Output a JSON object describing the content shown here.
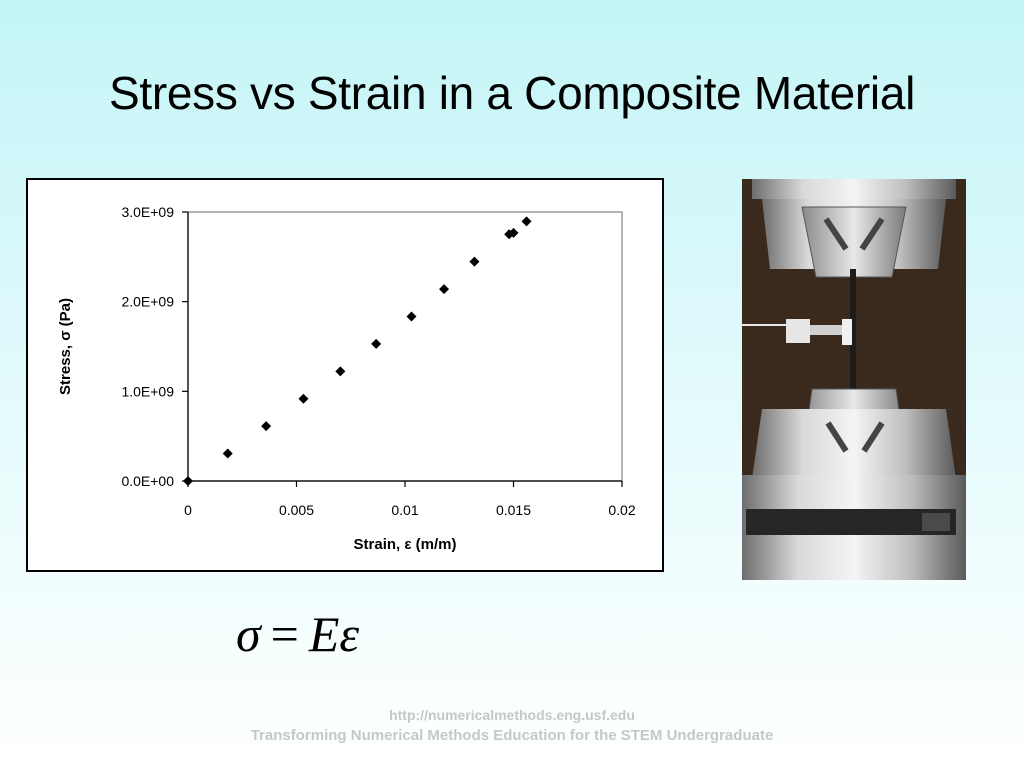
{
  "slide": {
    "title": "Stress vs Strain in a Composite Material"
  },
  "chart_data": {
    "type": "scatter",
    "title": "",
    "xlabel": "Strain, ε (m/m)",
    "ylabel": "Stress, σ (Pa)",
    "xlim": [
      0,
      0.02
    ],
    "ylim": [
      0,
      3000000000
    ],
    "xticks": [
      0,
      0.005,
      0.01,
      0.015,
      0.02
    ],
    "xtick_labels": [
      "0",
      "0.005",
      "0.01",
      "0.015",
      "0.02"
    ],
    "yticks": [
      0,
      1000000000,
      2000000000,
      3000000000
    ],
    "ytick_labels": [
      "0.0E+00",
      "1.0E+09",
      "2.0E+09",
      "3.0E+09"
    ],
    "grid": false,
    "series": [
      {
        "marker": "diamond",
        "color": "#000000",
        "points": [
          {
            "x": 0,
            "y": 0
          },
          {
            "x": 0.00183,
            "y": 306000000
          },
          {
            "x": 0.0036,
            "y": 612000000
          },
          {
            "x": 0.00532,
            "y": 917000000
          },
          {
            "x": 0.00702,
            "y": 1223000000
          },
          {
            "x": 0.00867,
            "y": 1529000000
          },
          {
            "x": 0.0103,
            "y": 1835000000
          },
          {
            "x": 0.0118,
            "y": 2140000000
          },
          {
            "x": 0.0132,
            "y": 2446000000
          },
          {
            "x": 0.0148,
            "y": 2752000000
          },
          {
            "x": 0.015,
            "y": 2767000000
          },
          {
            "x": 0.0156,
            "y": 2896000000
          }
        ]
      }
    ]
  },
  "equation": {
    "lhs": "σ",
    "sign": "=",
    "rhs": "Eε"
  },
  "footer": {
    "url": "http://numericalmethods.eng.usf.edu",
    "tagline": "Transforming Numerical Methods Education for the STEM Undergraduate"
  }
}
